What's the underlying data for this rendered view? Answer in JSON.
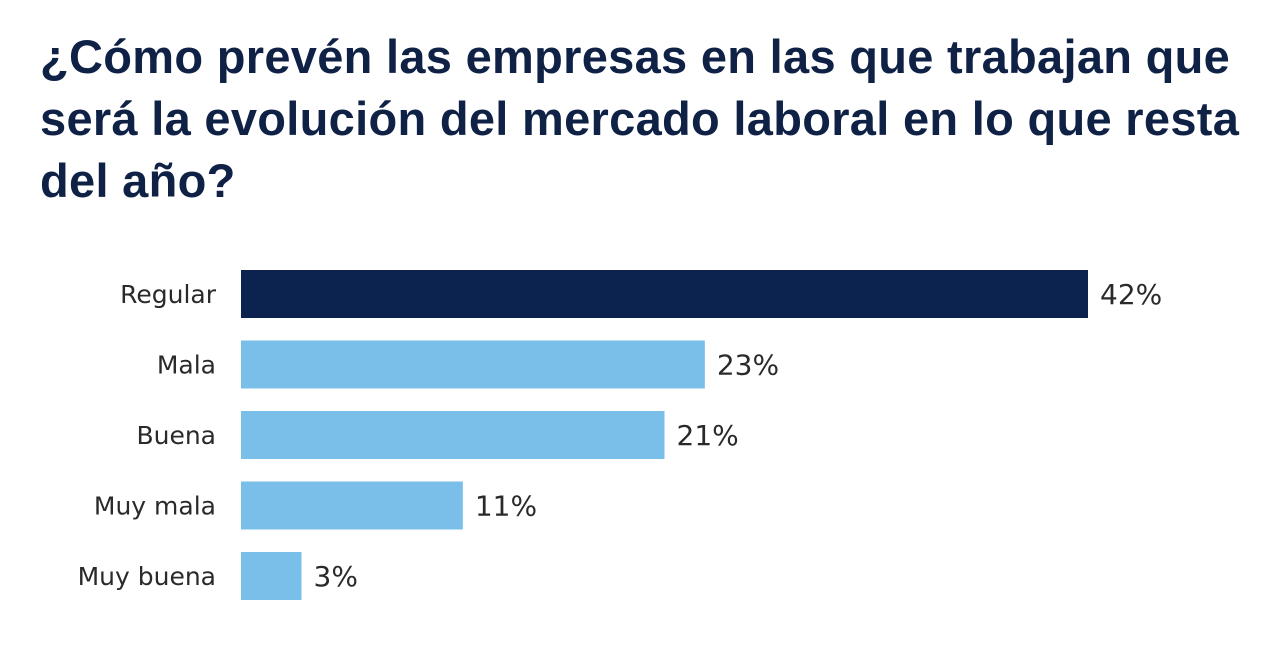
{
  "title": "¿Cómo prevén las empresas en las que trabajan que será la evolución del mercado laboral en lo que resta del año?",
  "colors": {
    "highlight_bar": "#0c2350",
    "bar": "#79bfea",
    "title": "#0f2246",
    "text": "#2a2a2a",
    "background": "#ffffff"
  },
  "chart_data": {
    "type": "bar",
    "orientation": "horizontal",
    "title": "¿Cómo prevén las empresas en las que trabajan que será la evolución del mercado laboral en lo que resta del año?",
    "categories": [
      "Regular",
      "Mala",
      "Buena",
      "Muy mala",
      "Muy buena"
    ],
    "values": [
      42,
      23,
      21,
      11,
      3
    ],
    "value_labels": [
      "42%",
      "23%",
      "21%",
      "11%",
      "3%"
    ],
    "unit": "%",
    "highlighted_category": "Regular",
    "xlim": [
      0,
      42
    ],
    "grid": false,
    "legend": "none"
  }
}
